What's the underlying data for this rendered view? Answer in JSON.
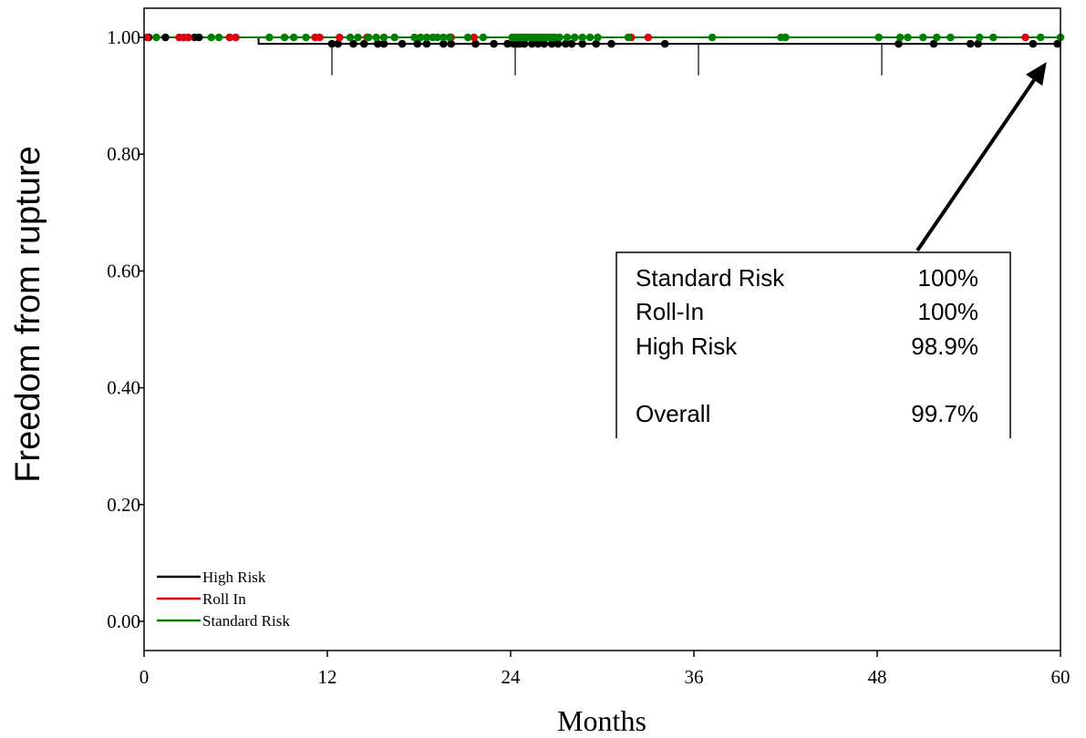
{
  "chart_data": {
    "type": "line",
    "title": "",
    "xlabel": "Months",
    "ylabel": "Freedom from rupture",
    "xlim": [
      0,
      60
    ],
    "ylim": [
      -0.05,
      1.05
    ],
    "x_ticks": [
      0,
      12,
      24,
      36,
      48,
      60
    ],
    "x_tick_labels": [
      "0",
      "12",
      "24",
      "36",
      "48",
      "60"
    ],
    "y_ticks": [
      0.0,
      0.2,
      0.4,
      0.6,
      0.8,
      1.0
    ],
    "y_tick_labels": [
      "0.00",
      "0.20",
      "0.40",
      "0.60",
      "0.80",
      "1.00"
    ],
    "grid": false,
    "legend_position": "bottom-left",
    "series": [
      {
        "name": "High Risk",
        "color": "#000000",
        "steps": [
          [
            0,
            1.0
          ],
          [
            7.5,
            1.0
          ],
          [
            7.5,
            0.989
          ],
          [
            60,
            0.989
          ]
        ],
        "censored": [
          0.3,
          1.4,
          3.3,
          3.6,
          5.6,
          12.3,
          12.7,
          13.7,
          14.4,
          15.3,
          15.7,
          16.9,
          17.9,
          18.5,
          19.6,
          20.1,
          21.7,
          22.9,
          23.8,
          24.2,
          24.4,
          24.6,
          24.9,
          25.4,
          25.8,
          26.2,
          26.7,
          27.1,
          27.6,
          28.0,
          28.7,
          29.6,
          30.6,
          34.1,
          49.4,
          51.7,
          54.1,
          54.6,
          58.2,
          59.8
        ]
      },
      {
        "name": "Roll In",
        "color": "#e0000f",
        "steps": [
          [
            0,
            1.0
          ],
          [
            60,
            1.0
          ]
        ],
        "censored": [
          0.2,
          2.3,
          2.6,
          2.9,
          5.6,
          6.0,
          11.2,
          11.5,
          12.8,
          14.6,
          20.1,
          21.6,
          31.9,
          33.0,
          57.7
        ]
      },
      {
        "name": "Standard Risk",
        "color": "#008000",
        "steps": [
          [
            0,
            1.0
          ],
          [
            60,
            1.0
          ]
        ],
        "censored": [
          0.8,
          4.4,
          4.9,
          8.2,
          9.2,
          9.8,
          10.6,
          13.5,
          14.0,
          14.7,
          15.2,
          15.7,
          16.4,
          17.7,
          18.1,
          18.5,
          18.9,
          19.2,
          19.6,
          20.0,
          21.2,
          22.2,
          24.1,
          24.3,
          24.5,
          24.7,
          24.9,
          25.1,
          25.3,
          25.5,
          25.7,
          25.9,
          26.1,
          26.3,
          26.5,
          26.7,
          26.9,
          27.2,
          27.7,
          28.2,
          28.7,
          29.2,
          29.7,
          31.7,
          37.2,
          41.7,
          42.0,
          48.1,
          49.5,
          50.0,
          51.0,
          51.9,
          52.8,
          54.7,
          55.6,
          58.7,
          60.0
        ]
      }
    ],
    "risk_markers_x": [
      12.3,
      24.3,
      36.3,
      48.3
    ],
    "annotation": {
      "rows": [
        {
          "label": "Standard Risk",
          "value": "100%"
        },
        {
          "label": "Roll-In",
          "value": "100%"
        },
        {
          "label": "High Risk",
          "value": "98.9%"
        },
        {
          "label": "Overall",
          "value": "99.7%"
        }
      ],
      "arrow_target": [
        59.8,
        0.989
      ]
    }
  }
}
